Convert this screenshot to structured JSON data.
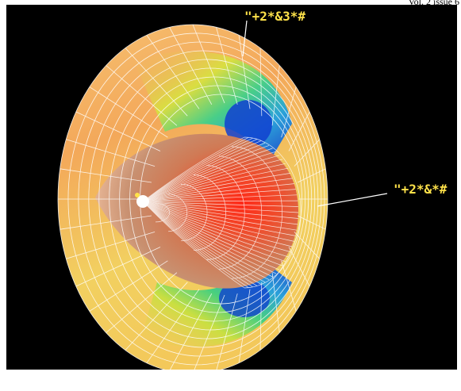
{
  "corner_text": "Vol. 2 issue 6",
  "labels": {
    "top": "\"+2*&3*#",
    "right": "\"+2*&*#"
  },
  "colors": {
    "background": "#000000",
    "label": "#ffe24a",
    "mesh": "#ffffff",
    "outer_rim": "#f2b06a",
    "warm": "#ff3a1a",
    "cool": "#1233cc"
  }
}
